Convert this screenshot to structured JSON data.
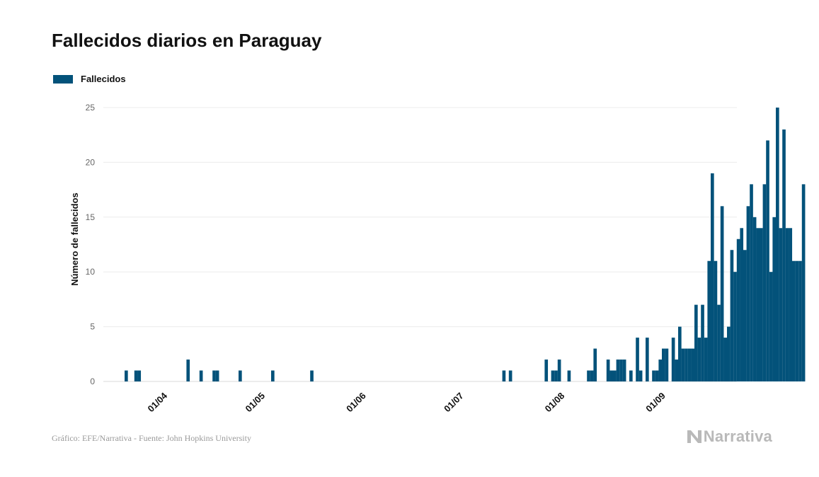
{
  "title": "Fallecidos diarios en Paraguay",
  "legend": {
    "label": "Fallecidos",
    "color": "#03527a"
  },
  "source": "Gráfico: EFE/Narrativa - Fuente: John Hopkins University",
  "brand": {
    "name": "Narrativa",
    "icon": "narrativa-logo-icon"
  },
  "chart_data": {
    "type": "bar",
    "title": "Fallecidos diarios en Paraguay",
    "ylabel": "Número de fallecidos",
    "xlabel": "",
    "ylim": [
      0,
      26
    ],
    "yticks": [
      0,
      5,
      10,
      15,
      20,
      25
    ],
    "xtick_labels": [
      "01/04",
      "01/05",
      "01/06",
      "01/07",
      "01/08",
      "01/09"
    ],
    "xtick_days": [
      0,
      30,
      61,
      91,
      122,
      153
    ],
    "x_start": "2020-03-20",
    "series": [
      {
        "name": "Fallecidos",
        "color": "#03527a",
        "values": [
          0,
          0,
          0,
          0,
          0,
          0,
          0,
          1,
          0,
          0,
          1,
          1,
          0,
          0,
          0,
          0,
          0,
          0,
          0,
          0,
          0,
          0,
          0,
          0,
          0,
          0,
          2,
          0,
          0,
          0,
          1,
          0,
          0,
          0,
          1,
          1,
          0,
          0,
          0,
          0,
          0,
          0,
          1,
          0,
          0,
          0,
          0,
          0,
          0,
          0,
          0,
          0,
          1,
          0,
          0,
          0,
          0,
          0,
          0,
          0,
          0,
          0,
          0,
          0,
          1,
          0,
          0,
          0,
          0,
          0,
          0,
          0,
          0,
          0,
          0,
          0,
          0,
          0,
          0,
          0,
          0,
          0,
          0,
          0,
          0,
          0,
          0,
          0,
          0,
          0,
          0,
          0,
          0,
          0,
          0,
          0,
          0,
          0,
          0,
          0,
          0,
          0,
          0,
          0,
          0,
          0,
          0,
          0,
          0,
          0,
          0,
          0,
          0,
          0,
          0,
          0,
          0,
          0,
          0,
          0,
          0,
          0,
          0,
          1,
          0,
          1,
          0,
          0,
          0,
          0,
          0,
          0,
          0,
          0,
          0,
          0,
          2,
          0,
          1,
          1,
          2,
          0,
          0,
          1,
          0,
          0,
          0,
          0,
          0,
          1,
          1,
          3,
          0,
          0,
          0,
          2,
          1,
          1,
          2,
          2,
          2,
          0,
          1,
          0,
          4,
          1,
          0,
          4,
          0,
          1,
          1,
          2,
          3,
          3,
          0,
          4,
          2,
          5,
          3,
          3,
          3,
          3,
          7,
          4,
          7,
          4,
          11,
          19,
          11,
          7,
          16,
          4,
          5,
          12,
          10,
          13,
          14,
          12,
          16,
          18,
          15,
          14,
          14,
          18,
          22,
          10,
          15,
          25,
          14,
          23,
          14,
          14,
          11,
          11,
          11,
          18
        ]
      }
    ]
  }
}
